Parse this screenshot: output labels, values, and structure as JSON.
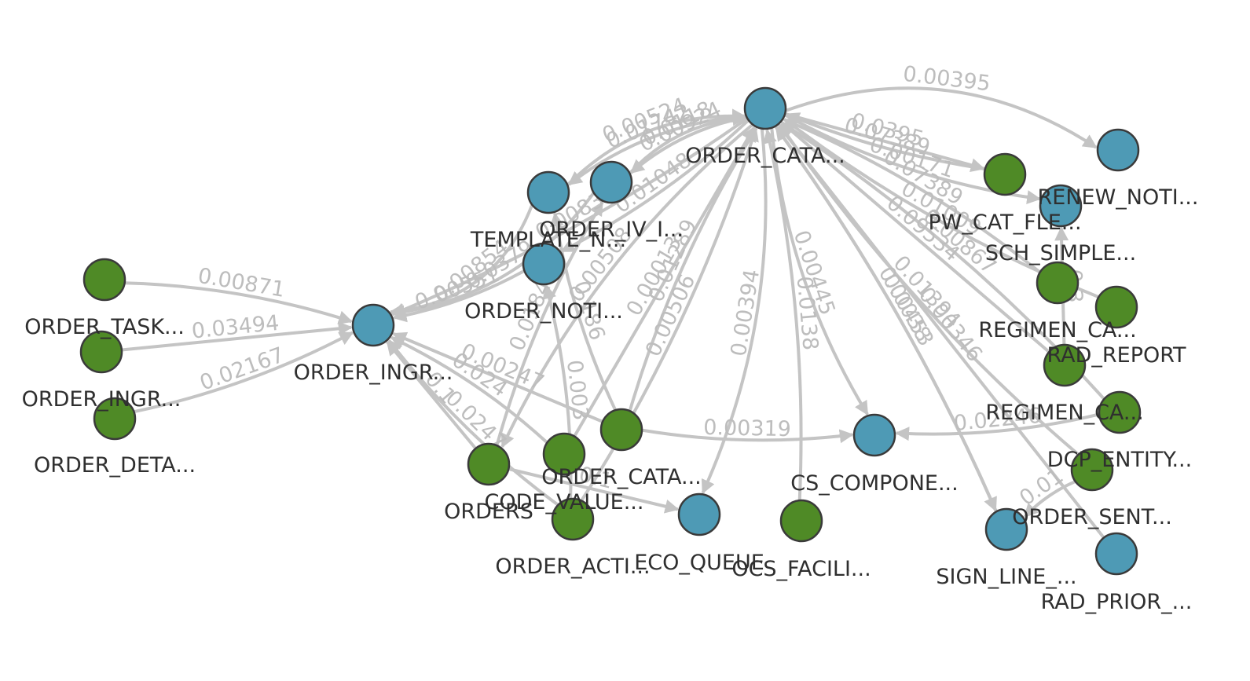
{
  "colors": {
    "blue": "#4e9ab5",
    "green": "#4f8a26",
    "edge": "#c4c4c4",
    "edge_label": "#bdbdbd",
    "label": "#2f2f2f"
  },
  "nodes": [
    {
      "id": "task",
      "label": "ORDER_TASK...",
      "color": "green"
    },
    {
      "id": "ingr1",
      "label": "ORDER_INGR...",
      "color": "green"
    },
    {
      "id": "deta",
      "label": "ORDER_DETA...",
      "color": "green"
    },
    {
      "id": "ingr",
      "label": "ORDER_INGR...",
      "color": "blue"
    },
    {
      "id": "template",
      "label": "TEMPLATE_N...",
      "color": "blue"
    },
    {
      "id": "oiv",
      "label": "ORDER_IV_I...",
      "color": "blue"
    },
    {
      "id": "noti",
      "label": "ORDER_NOTI...",
      "color": "blue"
    },
    {
      "id": "cata",
      "label": "ORDER_CATA...",
      "color": "blue"
    },
    {
      "id": "renew",
      "label": "RENEW_NOTI...",
      "color": "blue"
    },
    {
      "id": "pwcat",
      "label": "PW_CAT_FLE...",
      "color": "green"
    },
    {
      "id": "sch",
      "label": "SCH_SIMPLE...",
      "color": "blue"
    },
    {
      "id": "regca1",
      "label": "REGIMEN_CA...",
      "color": "green"
    },
    {
      "id": "radrep",
      "label": "RAD_REPORT",
      "color": "green"
    },
    {
      "id": "regca2",
      "label": "REGIMEN_CA...",
      "color": "green"
    },
    {
      "id": "dcp",
      "label": "DCP_ENTITY...",
      "color": "green"
    },
    {
      "id": "sent",
      "label": "ORDER_SENT...",
      "color": "green"
    },
    {
      "id": "radprior",
      "label": "RAD_PRIOR_...",
      "color": "blue"
    },
    {
      "id": "signline",
      "label": "SIGN_LINE_...",
      "color": "blue"
    },
    {
      "id": "cscomp",
      "label": "CS_COMPONE...",
      "color": "blue"
    },
    {
      "id": "ocsfac",
      "label": "OCS_FACILI...",
      "color": "green"
    },
    {
      "id": "eco",
      "label": "ECO_QUEUE",
      "color": "blue"
    },
    {
      "id": "acti",
      "label": "ORDER_ACTI...",
      "color": "green"
    },
    {
      "id": "codev",
      "label": "CODE_VALUE...",
      "color": "green"
    },
    {
      "id": "orders",
      "label": "ORDERS",
      "color": "green"
    },
    {
      "id": "cata2",
      "label": "ORDER_CATA...",
      "color": "green"
    }
  ],
  "edges": [
    {
      "from": "task",
      "to": "ingr",
      "label": "0.00871"
    },
    {
      "from": "ingr1",
      "to": "ingr",
      "label": "0.03494"
    },
    {
      "from": "deta",
      "to": "ingr",
      "label": "0.02167"
    },
    {
      "from": "template",
      "to": "ingr",
      "label": "0.00854"
    },
    {
      "from": "oiv",
      "to": "ingr",
      "label": "0.0379"
    },
    {
      "from": "cata",
      "to": "ingr",
      "label": "0.0083"
    },
    {
      "from": "noti",
      "to": "ingr",
      "label": "0.00551"
    },
    {
      "from": "orders",
      "to": "ingr",
      "label": "0.1"
    },
    {
      "from": "codev",
      "to": "ingr",
      "label": "0.024"
    },
    {
      "from": "acti",
      "to": "ingr",
      "label": "0.0247"
    },
    {
      "from": "cata2",
      "to": "ingr",
      "label": "0.00247"
    },
    {
      "from": "template",
      "to": "cata",
      "label": "0.00524"
    },
    {
      "from": "oiv",
      "to": "cata",
      "label": "0.0118"
    },
    {
      "from": "cata",
      "to": "template",
      "label": "0.01742"
    },
    {
      "from": "cata",
      "to": "oiv",
      "label": "0.00924"
    },
    {
      "from": "cata",
      "to": "noti",
      "label": "0.01048"
    },
    {
      "from": "cata",
      "to": "renew",
      "label": "0.00395"
    },
    {
      "from": "pwcat",
      "to": "cata",
      "label": "0.07389"
    },
    {
      "from": "cata",
      "to": "sch",
      "label": "0.00171"
    },
    {
      "from": "cata",
      "to": "pwcat",
      "label": "0.0395"
    },
    {
      "from": "regca1",
      "to": "cata",
      "label": "0.07389"
    },
    {
      "from": "radrep",
      "to": "cata",
      "label": "0.01009"
    },
    {
      "from": "regca2",
      "to": "cata",
      "label": "0.09534"
    },
    {
      "from": "dcp",
      "to": "cata",
      "label": "0.00867"
    },
    {
      "from": "sent",
      "to": "cata",
      "label": "0.01394"
    },
    {
      "from": "radprior",
      "to": "cata",
      "label": "0.00346"
    },
    {
      "from": "cata",
      "to": "signline",
      "label": "0.00453"
    },
    {
      "from": "cata",
      "to": "cscomp",
      "label": "0.00445"
    },
    {
      "from": "signline",
      "to": "cata",
      "label": "0.0038"
    },
    {
      "from": "ocsfac",
      "to": "cata",
      "label": "0.0138"
    },
    {
      "from": "cata",
      "to": "eco",
      "label": "0.00394"
    },
    {
      "from": "cata",
      "to": "orders",
      "label": "0.00508"
    },
    {
      "from": "acti",
      "to": "cata",
      "label": "0.00506"
    },
    {
      "from": "cata2",
      "to": "cata",
      "label": "0.01289"
    },
    {
      "from": "codev",
      "to": "cata",
      "label": "0.00013"
    },
    {
      "from": "cata2",
      "to": "cscomp",
      "label": "0.00319"
    },
    {
      "from": "dcp",
      "to": "cscomp",
      "label": "0.02246"
    },
    {
      "from": "orders",
      "to": "eco",
      "label": "0.1"
    },
    {
      "from": "acti",
      "to": "noti",
      "label": "0.003"
    },
    {
      "from": "cata2",
      "to": "template",
      "label": "0.186"
    },
    {
      "from": "regca2",
      "to": "sch",
      "label": "0.3"
    },
    {
      "from": "sent",
      "to": "signline",
      "label": "0.01"
    },
    {
      "from": "orders",
      "to": "oiv",
      "label": "0.0184"
    }
  ]
}
